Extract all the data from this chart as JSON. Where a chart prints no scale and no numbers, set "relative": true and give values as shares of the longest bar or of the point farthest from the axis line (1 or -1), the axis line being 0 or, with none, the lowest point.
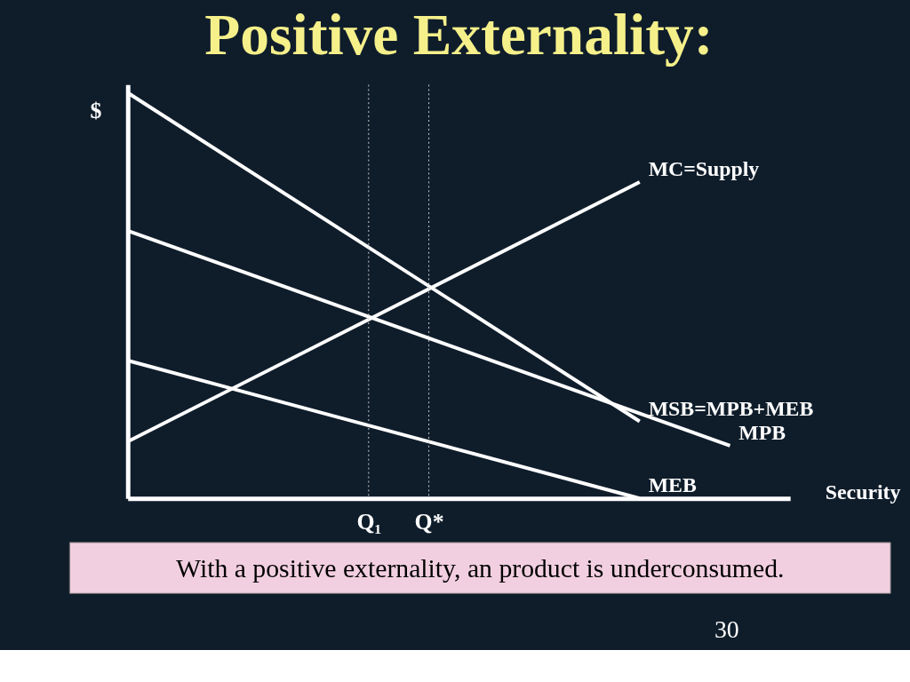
{
  "chart_data": {
    "type": "line",
    "relative": true,
    "title": "Positive Externality:",
    "xlabel": "Security",
    "ylabel": "$",
    "categories": [
      null,
      null,
      null,
      null,
      null,
      null,
      null,
      null,
      "Q₁",
      null,
      "Q*",
      null,
      null,
      null,
      null,
      null,
      null,
      null,
      null,
      null,
      null
    ],
    "series": [
      {
        "name": "MC=Supply",
        "color": "#ffffff",
        "values": [
          0.14,
          null,
          null,
          null,
          null,
          null,
          null,
          null,
          null,
          null,
          null,
          null,
          null,
          null,
          null,
          null,
          null,
          0.78,
          null,
          null,
          null
        ]
      },
      {
        "name": "MSB=MPB+MEB",
        "color": "#ffffff",
        "values": [
          1.0,
          null,
          null,
          null,
          null,
          null,
          null,
          null,
          null,
          null,
          null,
          null,
          null,
          null,
          null,
          null,
          null,
          0.19,
          null,
          null,
          null
        ]
      },
      {
        "name": "MPB",
        "color": "#ffffff",
        "values": [
          0.66,
          null,
          null,
          null,
          null,
          null,
          null,
          null,
          null,
          null,
          null,
          null,
          null,
          null,
          null,
          null,
          null,
          null,
          null,
          null,
          0.13
        ]
      },
      {
        "name": "MEB",
        "color": "#ffffff",
        "values": [
          0.34,
          null,
          null,
          null,
          null,
          null,
          null,
          null,
          null,
          null,
          null,
          null,
          null,
          null,
          null,
          null,
          null,
          0,
          null,
          null,
          null
        ]
      }
    ],
    "ref_lines": [
      {
        "axis": "x",
        "value": "Q₁",
        "color": "#cccccc",
        "line_style": "dotted"
      },
      {
        "axis": "x",
        "value": "Q*",
        "color": "#cccccc",
        "line_style": "dotted"
      }
    ],
    "annotations": [
      "With a positive externality, an product is underconsumed.",
      "30"
    ],
    "grid": false,
    "marker": "none",
    "line_style": "solid"
  }
}
